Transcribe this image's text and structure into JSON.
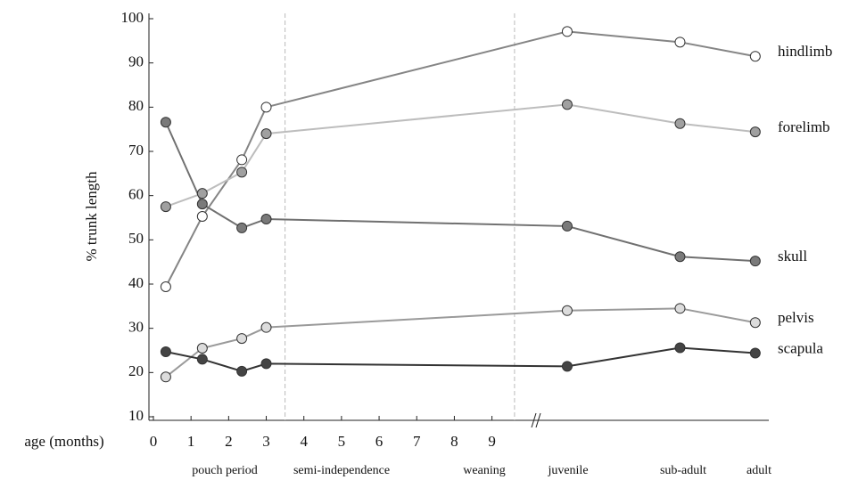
{
  "chart_data": {
    "type": "line",
    "y_label": "% trunk length",
    "x_label": "age (months)",
    "x": [
      0.33,
      1.3,
      2.35,
      3,
      11,
      14,
      16
    ],
    "xlim": [
      0,
      17
    ],
    "xticks": [
      0,
      1,
      2,
      3,
      4,
      5,
      6,
      7,
      8,
      9
    ],
    "ylim": [
      10,
      100
    ],
    "yticks": [
      10,
      20,
      30,
      40,
      50,
      60,
      70,
      80,
      90,
      100
    ],
    "dividers": [
      3.5,
      9.6
    ],
    "period_labels": [
      "pouch period",
      "semi-independence",
      "weaning",
      "juvenile",
      "sub-adult",
      "adult"
    ],
    "series": [
      {
        "name": "hindlimb",
        "color": "#858585",
        "marker": "#ffffff",
        "values": [
          39.4,
          55.3,
          68.1,
          80,
          97.1,
          94.7,
          91.5
        ]
      },
      {
        "name": "forelimb",
        "color": "#bdbdbd",
        "marker": "#a0a0a0",
        "values": [
          57.5,
          60.5,
          65.3,
          74,
          80.6,
          76.3,
          74.4
        ]
      },
      {
        "name": "skull",
        "color": "#707070",
        "marker": "#7a7a7a",
        "values": [
          76.6,
          58.1,
          52.7,
          54.7,
          53.1,
          46.2,
          45.2
        ]
      },
      {
        "name": "pelvis",
        "color": "#9a9a9a",
        "marker": "#dcdcdc",
        "values": [
          19,
          25.5,
          27.7,
          30.2,
          34,
          34.5,
          31.3
        ]
      },
      {
        "name": "scapula",
        "color": "#333333",
        "marker": "#444444",
        "values": [
          24.7,
          23,
          20.3,
          22,
          21.4,
          25.6,
          24.4
        ]
      }
    ]
  }
}
